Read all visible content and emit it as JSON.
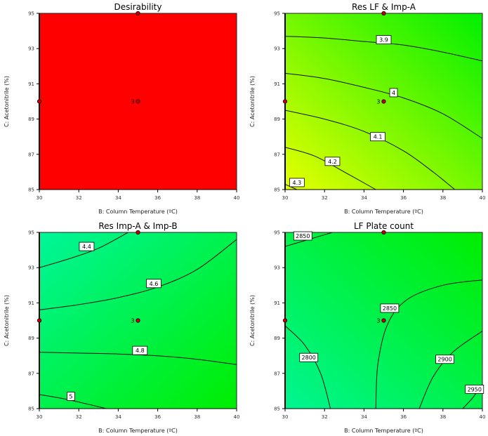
{
  "chart_data": [
    {
      "type": "contour",
      "title": "Desirability",
      "xlabel": "B: Column Temperature (ºC)",
      "ylabel": "C: Acetonitrile (%)",
      "xlim": [
        30,
        40
      ],
      "ylim": [
        85,
        95
      ],
      "xticks": [
        "30",
        "32",
        "34",
        "36",
        "38",
        "40"
      ],
      "yticks": [
        "85",
        "87",
        "89",
        "91",
        "93",
        "95"
      ],
      "fill": {
        "type": "solid",
        "color": "#ff0000"
      },
      "contours": [],
      "design_points": [
        {
          "x": 35,
          "y": 95,
          "label": ""
        },
        {
          "x": 30,
          "y": 90,
          "label": ""
        },
        {
          "x": 35,
          "y": 90,
          "label": "3"
        }
      ]
    },
    {
      "type": "contour",
      "title": "Res LF & Imp-A",
      "xlabel": "B: Column Temperature (ºC)",
      "ylabel": "C: Acetonitrile (%)",
      "xlim": [
        30,
        40
      ],
      "ylim": [
        85,
        95
      ],
      "xticks": [
        "30",
        "32",
        "34",
        "36",
        "38",
        "40"
      ],
      "yticks": [
        "85",
        "87",
        "89",
        "91",
        "93",
        "95"
      ],
      "fill": {
        "type": "gradient",
        "from_corner": "bottom-left",
        "from": "#e6ff00",
        "to": "#00f000"
      },
      "contours": [
        {
          "level": "3.9",
          "points": [
            [
              30,
              93.7
            ],
            [
              32,
              93.6
            ],
            [
              34,
              93.4
            ],
            [
              36,
              93.2
            ],
            [
              38,
              92.8
            ],
            [
              40,
              92.3
            ]
          ],
          "label_at": [
            35,
            93.5
          ]
        },
        {
          "level": "4",
          "points": [
            [
              30,
              91.6
            ],
            [
              32,
              91.3
            ],
            [
              34,
              90.8
            ],
            [
              36,
              90.2
            ],
            [
              38,
              89.3
            ],
            [
              40,
              87.9
            ]
          ],
          "label_at": [
            35.5,
            90.5
          ]
        },
        {
          "level": "4.1",
          "points": [
            [
              30,
              89.5
            ],
            [
              32,
              89.0
            ],
            [
              34,
              88.3
            ],
            [
              36,
              87.2
            ],
            [
              37.5,
              86.0
            ],
            [
              38.6,
              85
            ]
          ],
          "label_at": [
            34.7,
            88.0
          ]
        },
        {
          "level": "4.2",
          "points": [
            [
              30,
              87.4
            ],
            [
              31.5,
              86.9
            ],
            [
              33,
              86.0
            ],
            [
              34.6,
              85
            ]
          ],
          "label_at": [
            32.4,
            86.6
          ]
        },
        {
          "level": "4.3",
          "points": [
            [
              30,
              85.3
            ],
            [
              30.6,
              85
            ]
          ],
          "label_at": [
            30.6,
            85.4
          ]
        }
      ],
      "design_points": [
        {
          "x": 35,
          "y": 95,
          "label": ""
        },
        {
          "x": 30,
          "y": 90,
          "label": ""
        },
        {
          "x": 35,
          "y": 90,
          "label": "3"
        }
      ]
    },
    {
      "type": "contour",
      "title": "Res Imp-A & Imp-B",
      "xlabel": "B: Column Temperature (ºC)",
      "ylabel": "C: Acetonitrile (%)",
      "xlim": [
        30,
        40
      ],
      "ylim": [
        85,
        95
      ],
      "xticks": [
        "30",
        "32",
        "34",
        "36",
        "38",
        "40"
      ],
      "yticks": [
        "85",
        "87",
        "89",
        "91",
        "93",
        "95"
      ],
      "fill": {
        "type": "gradient",
        "from_corner": "top-left",
        "from": "#00f59a",
        "to": "#00ee00"
      },
      "contours": [
        {
          "level": "4.4",
          "points": [
            [
              30,
              93.0
            ],
            [
              31.5,
              93.5
            ],
            [
              33,
              94.1
            ],
            [
              34.5,
              95
            ]
          ],
          "label_at": [
            32.4,
            94.2
          ]
        },
        {
          "level": "4.6",
          "points": [
            [
              30,
              90.6
            ],
            [
              32,
              90.9
            ],
            [
              34,
              91.3
            ],
            [
              36,
              91.9
            ],
            [
              38,
              92.9
            ],
            [
              40,
              94.6
            ]
          ],
          "label_at": [
            35.8,
            92.1
          ]
        },
        {
          "level": "4.8",
          "points": [
            [
              30,
              88.2
            ],
            [
              32,
              88.15
            ],
            [
              34,
              88.1
            ],
            [
              36,
              88.0
            ],
            [
              38,
              87.8
            ],
            [
              40,
              87.5
            ]
          ],
          "label_at": [
            35.1,
            88.3
          ]
        },
        {
          "level": "5",
          "points": [
            [
              30,
              85.8
            ],
            [
              31.5,
              85.5
            ],
            [
              33.4,
              85
            ]
          ],
          "label_at": [
            31.6,
            85.7
          ]
        }
      ],
      "design_points": [
        {
          "x": 35,
          "y": 95,
          "label": ""
        },
        {
          "x": 30,
          "y": 90,
          "label": ""
        },
        {
          "x": 35,
          "y": 90,
          "label": "3"
        }
      ]
    },
    {
      "type": "contour",
      "title": "LF Plate count",
      "xlabel": "B: Column Temperature (ºC)",
      "ylabel": "C: Acetonitrile (%)",
      "xlim": [
        30,
        40
      ],
      "ylim": [
        85,
        95
      ],
      "xticks": [
        "30",
        "32",
        "34",
        "36",
        "38",
        "40"
      ],
      "yticks": [
        "85",
        "87",
        "89",
        "91",
        "93",
        "95"
      ],
      "fill": {
        "type": "gradient",
        "from_corner": "bottom-left",
        "from": "#00f592",
        "to": "#00ee00"
      },
      "contours": [
        {
          "level": "2850",
          "points": [
            [
              30,
              94.2
            ],
            [
              31.2,
              94.6
            ],
            [
              32.4,
              95
            ]
          ],
          "label_at": [
            30.9,
            94.8
          ]
        },
        {
          "level": "2850",
          "points": [
            [
              34.6,
              85
            ],
            [
              34.7,
              87.5
            ],
            [
              35.2,
              89.8
            ],
            [
              36.2,
              91.2
            ],
            [
              38,
              92.0
            ],
            [
              40,
              92.3
            ]
          ],
          "label_at": [
            35.3,
            90.7
          ]
        },
        {
          "level": "2800",
          "points": [
            [
              30,
              89.7
            ],
            [
              31,
              88.6
            ],
            [
              31.8,
              87.0
            ],
            [
              32.3,
              85
            ]
          ],
          "label_at": [
            31.2,
            87.9
          ]
        },
        {
          "level": "2900",
          "points": [
            [
              36.8,
              85
            ],
            [
              37.5,
              86.8
            ],
            [
              38.5,
              88.2
            ],
            [
              40,
              89.4
            ]
          ],
          "label_at": [
            38.1,
            87.8
          ]
        },
        {
          "level": "2950",
          "points": [
            [
              39.0,
              85
            ],
            [
              39.5,
              85.6
            ],
            [
              40,
              86.4
            ]
          ],
          "label_at": [
            39.6,
            86.1
          ]
        }
      ],
      "design_points": [
        {
          "x": 35,
          "y": 95,
          "label": ""
        },
        {
          "x": 30,
          "y": 90,
          "label": ""
        },
        {
          "x": 35,
          "y": 90,
          "label": "3"
        }
      ]
    }
  ]
}
